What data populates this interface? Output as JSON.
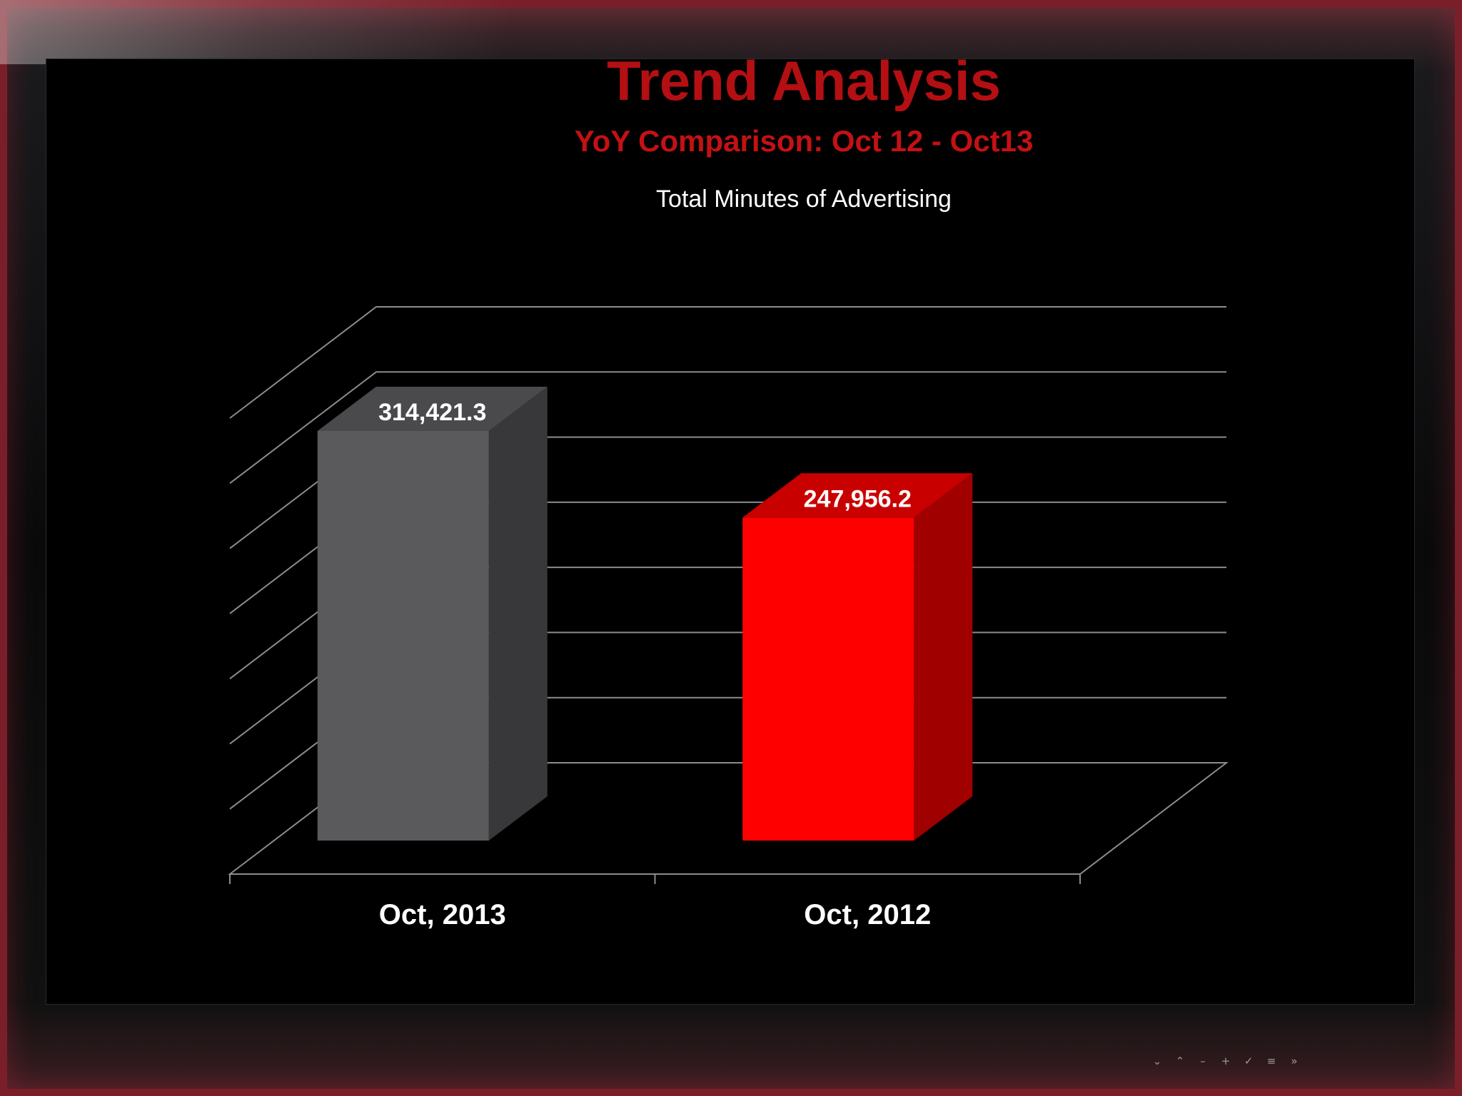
{
  "slide": {
    "title": "Trend Analysis",
    "subtitle": "YoY Comparison: Oct 12 - Oct13"
  },
  "colors": {
    "title": "#b40f12",
    "bar_2013_front": "#5a5a5c",
    "bar_2013_side": "#38373a",
    "bar_2013_top": "#4a4a4c",
    "bar_2012_front": "#ff0000",
    "bar_2012_side": "#a10000",
    "bar_2012_top": "#c90000",
    "gridline": "#8c8c8c"
  },
  "chart_data": {
    "type": "bar",
    "style": "3d-column",
    "title": "Total Minutes of Advertising",
    "categories": [
      "Oct, 2013",
      "Oct, 2012"
    ],
    "values": [
      314421.3,
      247956.2
    ],
    "data_labels": [
      "314,421.3",
      "247,956.2"
    ],
    "ylim": [
      0,
      350000
    ],
    "grid": true,
    "legend": "none"
  },
  "monitor_controls": [
    "⌄",
    "⌃",
    "–",
    "+",
    "✓",
    "≡",
    "»"
  ]
}
